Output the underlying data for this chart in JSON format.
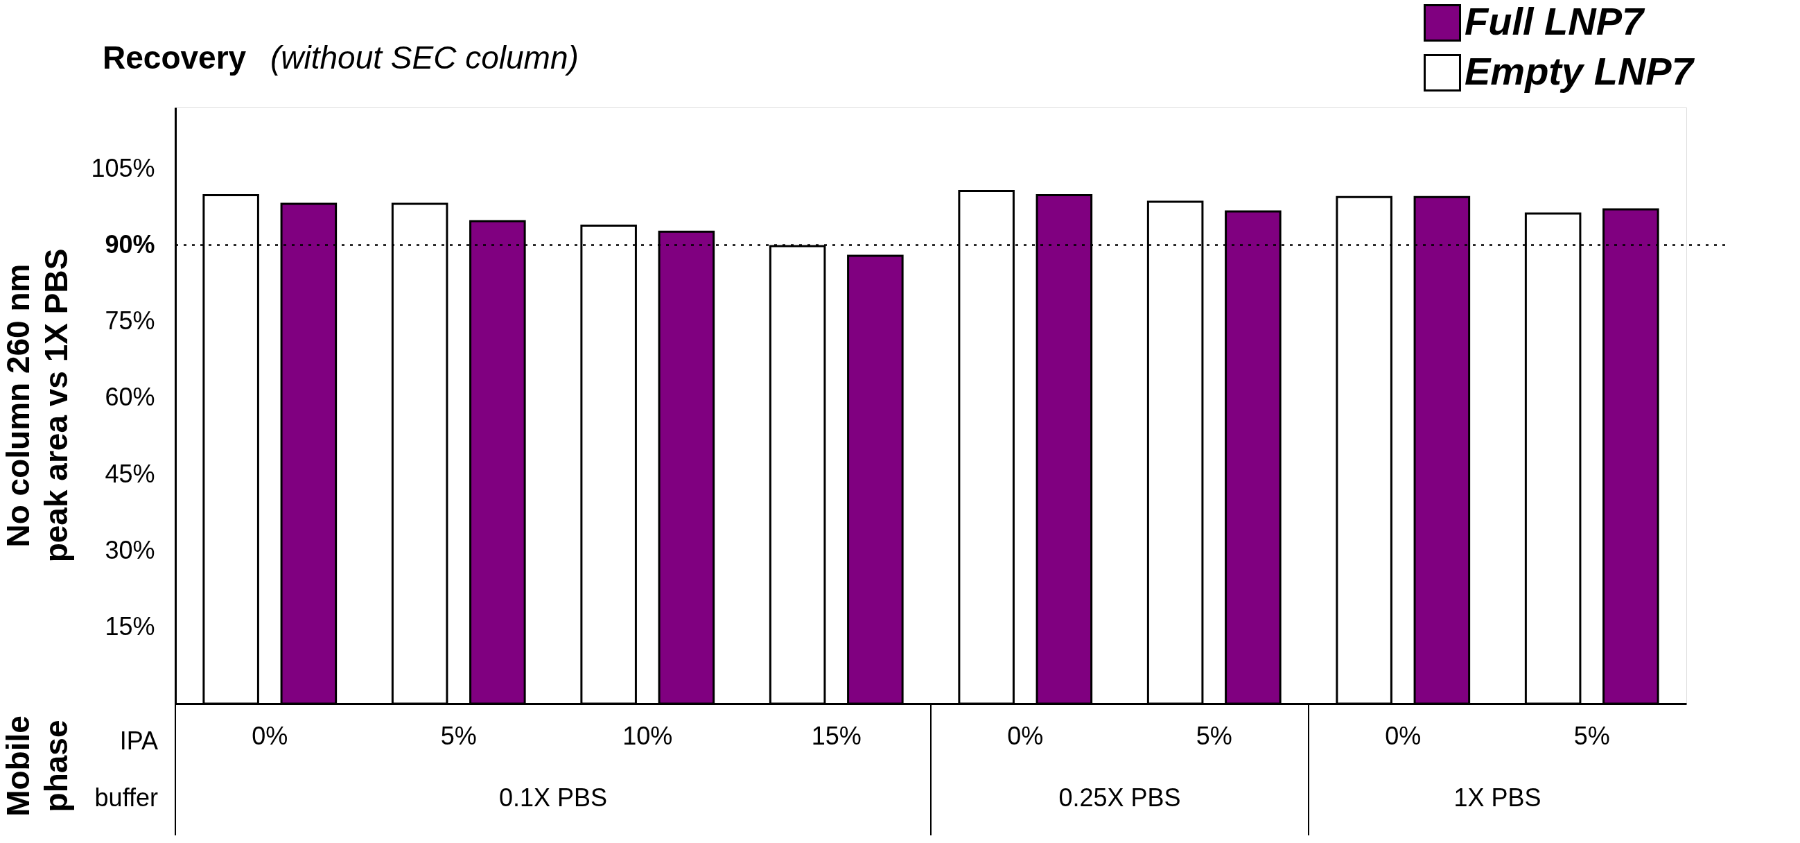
{
  "chart_data": {
    "type": "bar",
    "title": "Recovery",
    "subtitle": "(without SEC column)",
    "ylabel": "No column 260 nm peak area vs 1X PBS",
    "categories": [
      "0%",
      "5%",
      "10%",
      "15%",
      "0%",
      "5%",
      "0%",
      "5%"
    ],
    "series": [
      {
        "name": "Empty LNP7",
        "color": "#ffffff",
        "values": [
          99.8,
          98.1,
          93.8,
          89.8,
          100.6,
          98.5,
          99.4,
          96.2
        ]
      },
      {
        "name": "Full LNP7",
        "color": "#800080",
        "values": [
          98.1,
          94.7,
          92.6,
          87.9,
          99.8,
          96.6,
          99.4,
          97.0
        ]
      }
    ],
    "ylim": [
      0,
      117
    ],
    "yticks": [
      {
        "value": 15,
        "label": "15%"
      },
      {
        "value": 30,
        "label": "30%"
      },
      {
        "value": 45,
        "label": "45%"
      },
      {
        "value": 60,
        "label": "60%"
      },
      {
        "value": 75,
        "label": "75%"
      },
      {
        "value": 90,
        "label": "90%"
      },
      {
        "value": 105,
        "label": "105%"
      }
    ],
    "ref_lines": [
      {
        "axis": "y",
        "value": 90,
        "color": "#000000",
        "line_style": "dotted"
      }
    ],
    "annotations": [
      "Mobile phase",
      "IPA",
      "buffer",
      "0.1X PBS",
      "0.25X PBS",
      "1X PBS"
    ],
    "legend": "top right",
    "grid": false
  }
}
